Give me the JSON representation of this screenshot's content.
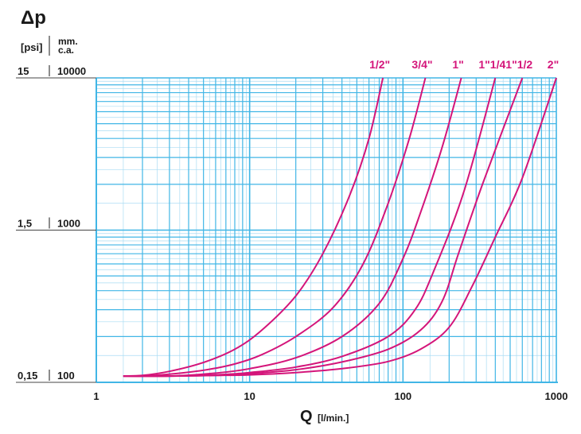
{
  "chart_data": {
    "type": "line",
    "title": "Δp",
    "xlabel": "Q",
    "xunit": "[l/min.]",
    "ylabel_units": [
      "[psi]",
      "[mm. c.a.]"
    ],
    "x_scale": "log",
    "y_scale": "log",
    "xlim": [
      1,
      1000
    ],
    "ylim": [
      100,
      10000
    ],
    "x_ticks": [
      "1",
      "10",
      "100",
      "1000"
    ],
    "y_ticks_mm": [
      "100",
      "1000",
      "10000"
    ],
    "y_ticks_psi": [
      "0,15",
      "1,5",
      "15"
    ],
    "grid": true,
    "colors": {
      "grid": "#41b6e6",
      "grid_minor": "#a9dcf3",
      "series": "#d4157a"
    },
    "series": [
      {
        "name": "1/2\"",
        "x": [
          1.5,
          2,
          3,
          5,
          8,
          12,
          20,
          30,
          45,
          60,
          74
        ],
        "y": [
          110,
          111,
          118,
          135,
          165,
          220,
          370,
          700,
          1700,
          4000,
          10000
        ]
      },
      {
        "name": "3/4\"",
        "x": [
          1.5,
          2,
          3,
          5,
          8,
          12,
          20,
          35,
          55,
          80,
          110,
          140
        ],
        "y": [
          110,
          110,
          113,
          120,
          132,
          152,
          200,
          310,
          600,
          1500,
          4000,
          10000
        ]
      },
      {
        "name": "1\"",
        "x": [
          1.5,
          3,
          6,
          10,
          20,
          40,
          70,
          100,
          130,
          180,
          240
        ],
        "y": [
          110,
          110,
          115,
          123,
          145,
          200,
          330,
          650,
          1300,
          3500,
          10000
        ]
      },
      {
        "name": "1\"1/4",
        "x": [
          1.5,
          3,
          6,
          10,
          20,
          40,
          80,
          120,
          160,
          250,
          400
        ],
        "y": [
          110,
          110,
          112,
          116,
          126,
          148,
          200,
          300,
          550,
          1800,
          10000
        ]
      },
      {
        "name": "1\"1/2",
        "x": [
          1.5,
          3,
          6,
          10,
          20,
          40,
          80,
          130,
          180,
          230,
          330,
          600
        ],
        "y": [
          110,
          110,
          111,
          114,
          121,
          136,
          165,
          220,
          340,
          700,
          2000,
          10000
        ]
      },
      {
        "name": "2\"",
        "x": [
          1.5,
          3,
          6,
          10,
          20,
          40,
          80,
          130,
          200,
          280,
          400,
          600,
          1000
        ],
        "y": [
          110,
          110,
          111,
          112,
          116,
          123,
          137,
          165,
          230,
          420,
          900,
          2200,
          10000
        ]
      }
    ]
  }
}
